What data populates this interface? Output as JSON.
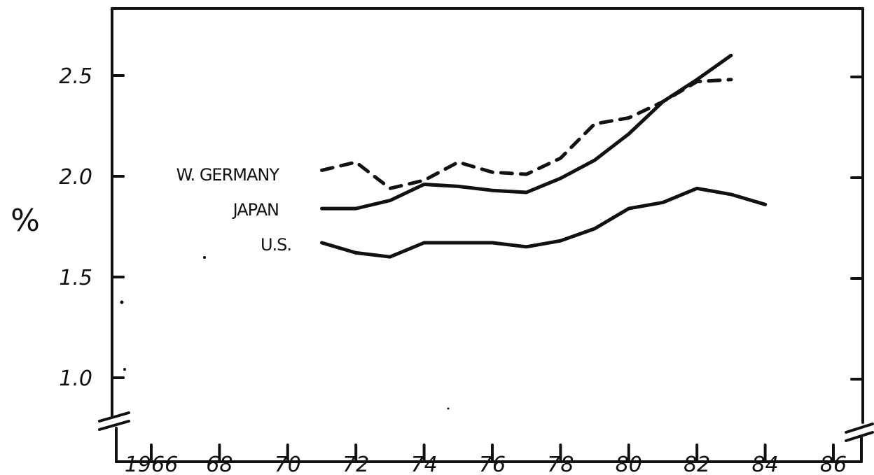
{
  "chart_data": {
    "type": "line",
    "title": "",
    "xlabel": "",
    "ylabel": "%",
    "xlim": [
      1965,
      1987
    ],
    "ylim": [
      0.8,
      2.85
    ],
    "x_ticks": [
      1966,
      1968,
      1970,
      1972,
      1974,
      1976,
      1978,
      1980,
      1982,
      1984,
      1986
    ],
    "x_tick_labels": [
      "1966",
      "68",
      "70",
      "72",
      "74",
      "76",
      "78",
      "80",
      "82",
      "84",
      "86"
    ],
    "y_ticks": [
      1.0,
      1.5,
      2.0,
      2.5
    ],
    "y_tick_labels": [
      "1.0",
      "1.5",
      "2.0",
      "2.5"
    ],
    "grid": false,
    "legend": "none",
    "series": [
      {
        "name": "W. GERMANY",
        "style": "dashed",
        "x": [
          1971,
          1972,
          1973,
          1974,
          1975,
          1976,
          1977,
          1978,
          1979,
          1980,
          1981,
          1982,
          1983
        ],
        "values": [
          2.03,
          2.07,
          1.94,
          1.98,
          2.07,
          2.02,
          2.01,
          2.09,
          2.26,
          2.29,
          2.37,
          2.47,
          2.48
        ]
      },
      {
        "name": "JAPAN",
        "style": "solid",
        "x": [
          1971,
          1972,
          1973,
          1974,
          1975,
          1976,
          1977,
          1978,
          1979,
          1980,
          1981,
          1982,
          1983
        ],
        "values": [
          1.84,
          1.84,
          1.88,
          1.96,
          1.95,
          1.93,
          1.92,
          1.99,
          2.08,
          2.21,
          2.37,
          2.48,
          2.6
        ]
      },
      {
        "name": "U.S.",
        "style": "solid",
        "x": [
          1971,
          1972,
          1973,
          1974,
          1975,
          1976,
          1977,
          1978,
          1979,
          1980,
          1981,
          1982,
          1983,
          1984
        ],
        "values": [
          1.67,
          1.62,
          1.6,
          1.67,
          1.67,
          1.67,
          1.65,
          1.68,
          1.74,
          1.84,
          1.87,
          1.94,
          1.91,
          1.86
        ]
      }
    ]
  },
  "labels": {
    "series_0": "W. GERMANY",
    "series_1": "JAPAN",
    "series_2": "U.S.",
    "y_unit": "%"
  }
}
